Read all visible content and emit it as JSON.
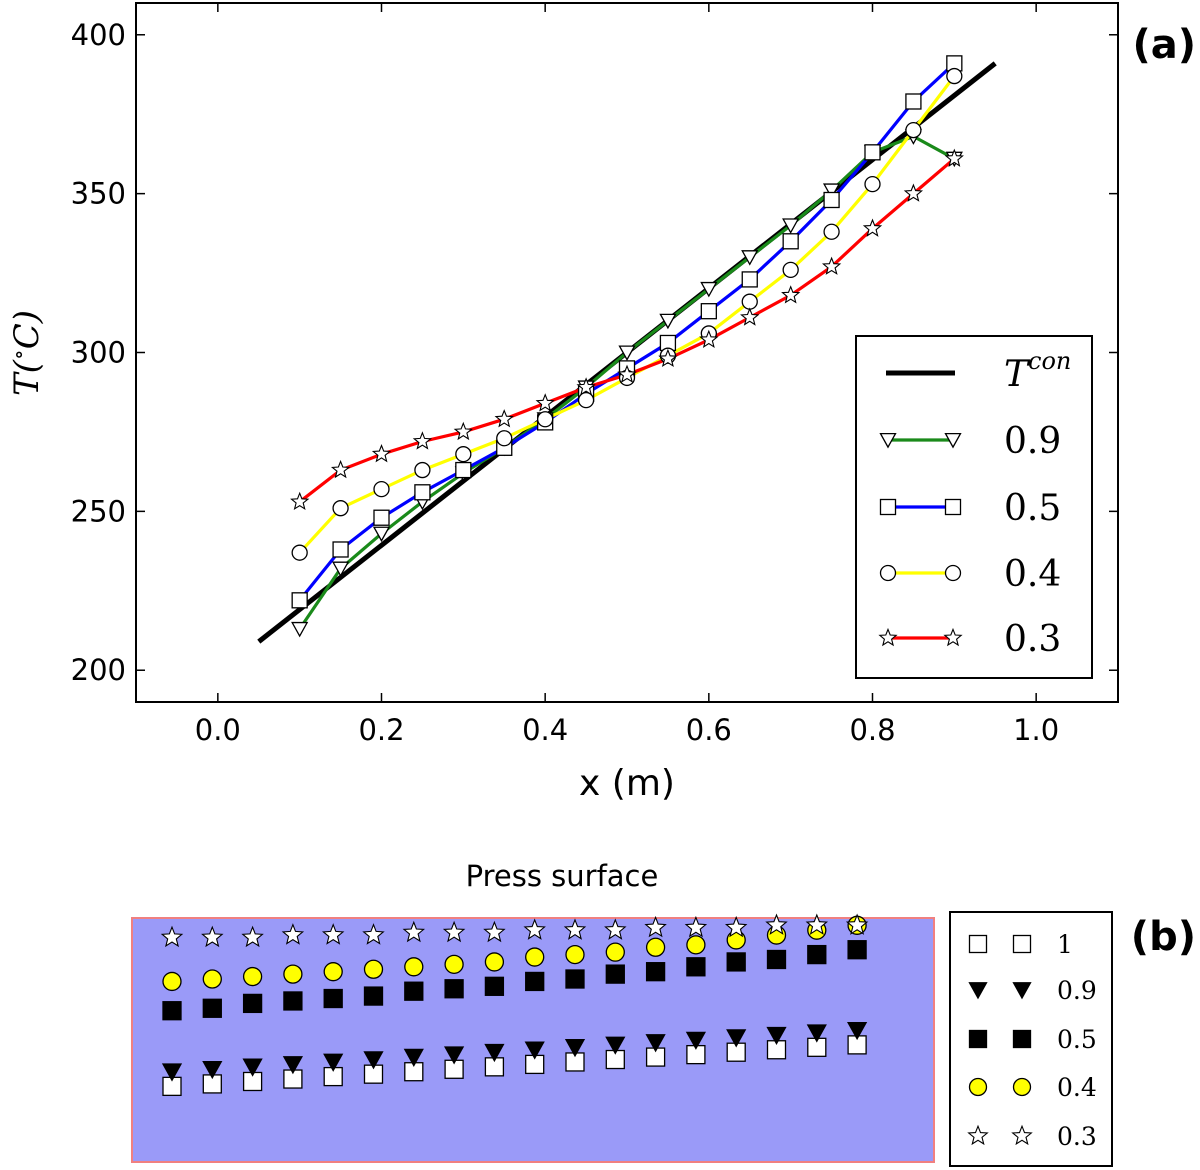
{
  "panel_a": {
    "tag": "(a)",
    "legend_entries": [
      {
        "key": "Tcon",
        "label_base": "T",
        "label_sup": "con"
      },
      {
        "key": "0.9",
        "label": "0.9"
      },
      {
        "key": "0.5",
        "label": "0.5"
      },
      {
        "key": "0.4",
        "label": "0.4"
      },
      {
        "key": "0.3",
        "label": "0.3"
      }
    ]
  },
  "panel_b": {
    "tag": "(b)",
    "title": "Press surface",
    "background_color": "#9a9af8",
    "legend_entries": [
      {
        "key": "1",
        "label": "1"
      },
      {
        "key": "0.9",
        "label": "0.9"
      },
      {
        "key": "0.5",
        "label": "0.5"
      },
      {
        "key": "0.4",
        "label": "0.4"
      },
      {
        "key": "0.3",
        "label": "0.3"
      }
    ]
  },
  "chart_data": [
    {
      "type": "line",
      "title": "",
      "xlabel": "x (m)",
      "ylabel_base": "T(",
      "ylabel_deg": "∘",
      "ylabel_unit": "C)",
      "xlim": [
        -0.1,
        1.1
      ],
      "ylim": [
        190,
        410
      ],
      "xticks": [
        0.0,
        0.2,
        0.4,
        0.6,
        0.8,
        1.0
      ],
      "xtick_labels": [
        "0.0",
        "0.2",
        "0.4",
        "0.6",
        "0.8",
        "1.0"
      ],
      "yticks": [
        200,
        250,
        300,
        350,
        400
      ],
      "ytick_labels": [
        "200",
        "250",
        "300",
        "350",
        "400"
      ],
      "grid": false,
      "legend_position": "lower-right",
      "series": [
        {
          "key": "Tcon",
          "color": "#000000",
          "marker": "none",
          "x": [
            0.05,
            0.95
          ],
          "y": [
            209,
            391
          ]
        },
        {
          "key": "0.9",
          "color": "#1a8a1a",
          "marker": "triangle-down",
          "x": [
            0.1,
            0.15,
            0.2,
            0.25,
            0.3,
            0.35,
            0.4,
            0.45,
            0.5,
            0.55,
            0.6,
            0.65,
            0.7,
            0.75,
            0.8,
            0.85,
            0.9
          ],
          "y": [
            213,
            232,
            243,
            253,
            262,
            270,
            279,
            289,
            300,
            310,
            320,
            330,
            340,
            351,
            363,
            368,
            361
          ]
        },
        {
          "key": "0.5",
          "color": "#0000ff",
          "marker": "square",
          "x": [
            0.1,
            0.15,
            0.2,
            0.25,
            0.3,
            0.35,
            0.4,
            0.45,
            0.5,
            0.55,
            0.6,
            0.65,
            0.7,
            0.75,
            0.8,
            0.85,
            0.9
          ],
          "y": [
            222,
            238,
            248,
            256,
            263,
            270,
            278,
            287,
            295,
            303,
            313,
            323,
            335,
            348,
            363,
            379,
            391
          ]
        },
        {
          "key": "0.4",
          "color": "#ffff00",
          "marker": "circle",
          "x": [
            0.1,
            0.15,
            0.2,
            0.25,
            0.3,
            0.35,
            0.4,
            0.45,
            0.5,
            0.55,
            0.6,
            0.65,
            0.7,
            0.75,
            0.8,
            0.85,
            0.9
          ],
          "y": [
            237,
            251,
            257,
            263,
            268,
            273,
            279,
            285,
            292,
            299,
            306,
            316,
            326,
            338,
            353,
            370,
            387
          ]
        },
        {
          "key": "0.3",
          "color": "#ff0000",
          "marker": "star",
          "x": [
            0.1,
            0.15,
            0.2,
            0.25,
            0.3,
            0.35,
            0.4,
            0.45,
            0.5,
            0.55,
            0.6,
            0.65,
            0.7,
            0.75,
            0.8,
            0.85,
            0.9
          ],
          "y": [
            253,
            263,
            268,
            272,
            275,
            279,
            284,
            289,
            293,
            298,
            304,
            311,
            318,
            327,
            339,
            350,
            361
          ]
        }
      ]
    },
    {
      "type": "scatter",
      "title": "Press surface",
      "xlabel": "",
      "ylabel": "",
      "grid": false,
      "legend_position": "right",
      "series": [
        {
          "key": "1",
          "marker": "square",
          "fill": "#ffffff",
          "x": [
            1,
            2,
            3,
            4,
            5,
            6,
            7,
            8,
            9,
            10,
            11,
            12,
            13,
            14,
            15,
            16,
            17,
            18
          ],
          "depth": [
            0.69,
            0.68,
            0.67,
            0.66,
            0.65,
            0.64,
            0.63,
            0.62,
            0.61,
            0.6,
            0.59,
            0.58,
            0.57,
            0.56,
            0.55,
            0.54,
            0.53,
            0.52
          ]
        },
        {
          "key": "0.9",
          "marker": "triangle-down",
          "fill": "#000000",
          "x": [
            1,
            2,
            3,
            4,
            5,
            6,
            7,
            8,
            9,
            10,
            11,
            12,
            13,
            14,
            15,
            16,
            17,
            18
          ],
          "depth": [
            0.63,
            0.62,
            0.61,
            0.6,
            0.59,
            0.58,
            0.57,
            0.56,
            0.55,
            0.54,
            0.53,
            0.52,
            0.51,
            0.5,
            0.49,
            0.48,
            0.47,
            0.46
          ]
        },
        {
          "key": "0.5",
          "marker": "square",
          "fill": "#000000",
          "x": [
            1,
            2,
            3,
            4,
            5,
            6,
            7,
            8,
            9,
            10,
            11,
            12,
            13,
            14,
            15,
            16,
            17,
            18
          ],
          "depth": [
            0.38,
            0.37,
            0.35,
            0.34,
            0.33,
            0.32,
            0.3,
            0.29,
            0.28,
            0.26,
            0.25,
            0.23,
            0.22,
            0.2,
            0.18,
            0.17,
            0.15,
            0.13
          ]
        },
        {
          "key": "0.4",
          "marker": "circle",
          "fill": "#ffff00",
          "x": [
            1,
            2,
            3,
            4,
            5,
            6,
            7,
            8,
            9,
            10,
            11,
            12,
            13,
            14,
            15,
            16,
            17,
            18
          ],
          "depth": [
            0.26,
            0.25,
            0.24,
            0.23,
            0.22,
            0.21,
            0.2,
            0.19,
            0.18,
            0.16,
            0.15,
            0.14,
            0.12,
            0.11,
            0.09,
            0.07,
            0.05,
            0.03
          ]
        },
        {
          "key": "0.3",
          "marker": "star",
          "fill": "#ffffff",
          "x": [
            1,
            2,
            3,
            4,
            5,
            6,
            7,
            8,
            9,
            10,
            11,
            12,
            13,
            14,
            15,
            16,
            17,
            18
          ],
          "depth": [
            0.08,
            0.08,
            0.08,
            0.07,
            0.07,
            0.07,
            0.06,
            0.06,
            0.06,
            0.05,
            0.05,
            0.05,
            0.04,
            0.04,
            0.04,
            0.03,
            0.03,
            0.03
          ]
        }
      ]
    }
  ]
}
